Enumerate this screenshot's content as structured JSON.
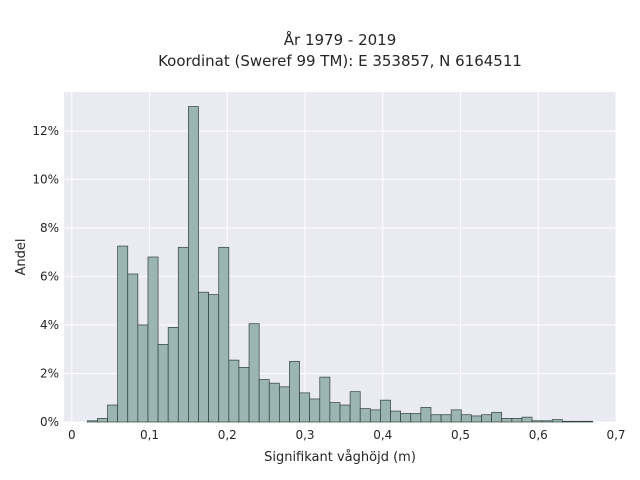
{
  "chart_data": {
    "type": "bar",
    "title_line1": "År 1979 - 2019",
    "title_line2": "Koordinat (Sweref 99 TM): E 353857, N 6164511",
    "xlabel": "Signifikant våghöjd (m)",
    "ylabel": "Andel",
    "xlim": [
      -0.01,
      0.7
    ],
    "ylim": [
      0,
      13.6
    ],
    "grid": true,
    "bin_width": 0.013,
    "bin_start": 0.02,
    "values": [
      0.05,
      0.15,
      0.7,
      7.25,
      6.1,
      4.0,
      6.8,
      3.2,
      3.9,
      7.2,
      13.0,
      5.35,
      5.25,
      7.2,
      2.55,
      2.25,
      4.05,
      1.75,
      1.6,
      1.45,
      2.5,
      1.2,
      0.95,
      1.85,
      0.8,
      0.7,
      1.25,
      0.55,
      0.5,
      0.9,
      0.45,
      0.35,
      0.35,
      0.6,
      0.3,
      0.3,
      0.5,
      0.3,
      0.25,
      0.3,
      0.4,
      0.15,
      0.15,
      0.2,
      0.05,
      0.05,
      0.1,
      0.03,
      0.03,
      0.03
    ],
    "xticks": [
      {
        "value": 0,
        "label": "0"
      },
      {
        "value": 0.1,
        "label": "0,1"
      },
      {
        "value": 0.2,
        "label": "0,2"
      },
      {
        "value": 0.3,
        "label": "0,3"
      },
      {
        "value": 0.4,
        "label": "0,4"
      },
      {
        "value": 0.5,
        "label": "0,5"
      },
      {
        "value": 0.6,
        "label": "0,6"
      },
      {
        "value": 0.7,
        "label": "0,7"
      }
    ],
    "yticks": [
      {
        "value": 0,
        "label": "0%"
      },
      {
        "value": 2,
        "label": "2%"
      },
      {
        "value": 4,
        "label": "4%"
      },
      {
        "value": 6,
        "label": "6%"
      },
      {
        "value": 8,
        "label": "8%"
      },
      {
        "value": 10,
        "label": "10%"
      },
      {
        "value": 12,
        "label": "12%"
      }
    ],
    "colors": {
      "plot_background": "#eaeaf2",
      "grid": "#ffffff",
      "bar_fill": "#9bb5b3",
      "bar_edge": "#2f3f3d"
    }
  }
}
